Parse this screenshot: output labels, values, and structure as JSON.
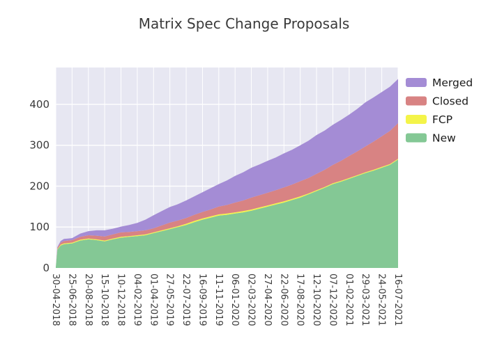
{
  "chart_data": {
    "type": "area",
    "stacked": true,
    "title": "Matrix Spec Change Proposals",
    "x_tick_labels": [
      "30-04-2018",
      "25-06-2018",
      "20-08-2018",
      "15-10-2018",
      "10-12-2018",
      "04-02-2019",
      "01-04-2019",
      "27-05-2019",
      "22-07-2019",
      "16-09-2019",
      "11-11-2019",
      "06-01-2020",
      "02-03-2020",
      "27-04-2020",
      "22-06-2020",
      "17-08-2020",
      "12-10-2020",
      "07-12-2020",
      "01-02-2021",
      "29-03-2021",
      "24-05-2021",
      "16-07-2021"
    ],
    "x_positions": [
      0,
      0.1,
      0.3,
      0.5,
      0.75,
      1,
      1.5,
      2,
      2.5,
      3,
      3.5,
      4,
      4.5,
      5,
      5.5,
      6,
      6.5,
      7,
      7.5,
      8,
      8.5,
      9,
      9.5,
      10,
      10.5,
      11,
      11.5,
      12,
      12.5,
      13,
      13.5,
      14,
      14.5,
      15,
      15.5,
      16,
      16.5,
      17,
      17.5,
      18,
      18.5,
      19,
      19.5,
      20,
      20.5,
      21
    ],
    "series": [
      {
        "name": "New",
        "color": "#84c895",
        "values": [
          2,
          45,
          55,
          58,
          59,
          60,
          67,
          70,
          68,
          65,
          70,
          74,
          76,
          78,
          80,
          85,
          90,
          95,
          100,
          105,
          112,
          118,
          123,
          128,
          130,
          133,
          136,
          140,
          145,
          150,
          155,
          160,
          166,
          172,
          180,
          188,
          196,
          205,
          211,
          218,
          225,
          232,
          238,
          245,
          252,
          265
        ]
      },
      {
        "name": "FCP",
        "color": "#f4f449",
        "values": [
          0,
          1,
          2,
          2,
          2,
          2,
          2,
          2,
          2,
          2,
          2,
          2,
          2,
          2,
          2,
          2,
          2,
          2,
          2,
          3,
          3,
          3,
          3,
          3,
          3,
          3,
          3,
          3,
          3,
          3,
          3,
          3,
          3,
          3,
          2,
          2,
          2,
          2,
          2,
          2,
          2,
          2,
          2,
          2,
          2,
          2
        ]
      },
      {
        "name": "Closed",
        "color": "#d88383",
        "values": [
          0,
          3,
          5,
          6,
          6,
          6,
          7,
          8,
          9,
          10,
          10,
          11,
          10,
          10,
          10,
          10,
          12,
          14,
          14,
          14,
          15,
          16,
          17,
          19,
          21,
          24,
          26,
          29,
          30,
          31,
          32,
          34,
          35,
          37,
          38,
          40,
          42,
          45,
          49,
          54,
          58,
          63,
          69,
          75,
          81,
          87
        ]
      },
      {
        "name": "Merged",
        "color": "#a48cd5",
        "values": [
          0,
          2,
          4,
          5,
          5,
          5,
          8,
          10,
          13,
          15,
          14,
          14,
          17,
          20,
          26,
          32,
          35,
          38,
          40,
          43,
          45,
          48,
          52,
          55,
          60,
          65,
          69,
          73,
          75,
          78,
          80,
          83,
          85,
          88,
          91,
          95,
          96,
          98,
          100,
          101,
          104,
          108,
          108,
          108,
          108,
          108
        ]
      }
    ],
    "legend": {
      "position": "upper-right-outside",
      "order": [
        "Merged",
        "Closed",
        "FCP",
        "New"
      ]
    },
    "y_ticks": [
      0,
      100,
      200,
      300,
      400
    ],
    "ylim": [
      0,
      490
    ],
    "grid": true,
    "plot_bg": "#e7e7f2",
    "grid_color": "#ffffff",
    "text_color": "#3a3a3a",
    "legend_text_color": "#1a1a1a"
  }
}
